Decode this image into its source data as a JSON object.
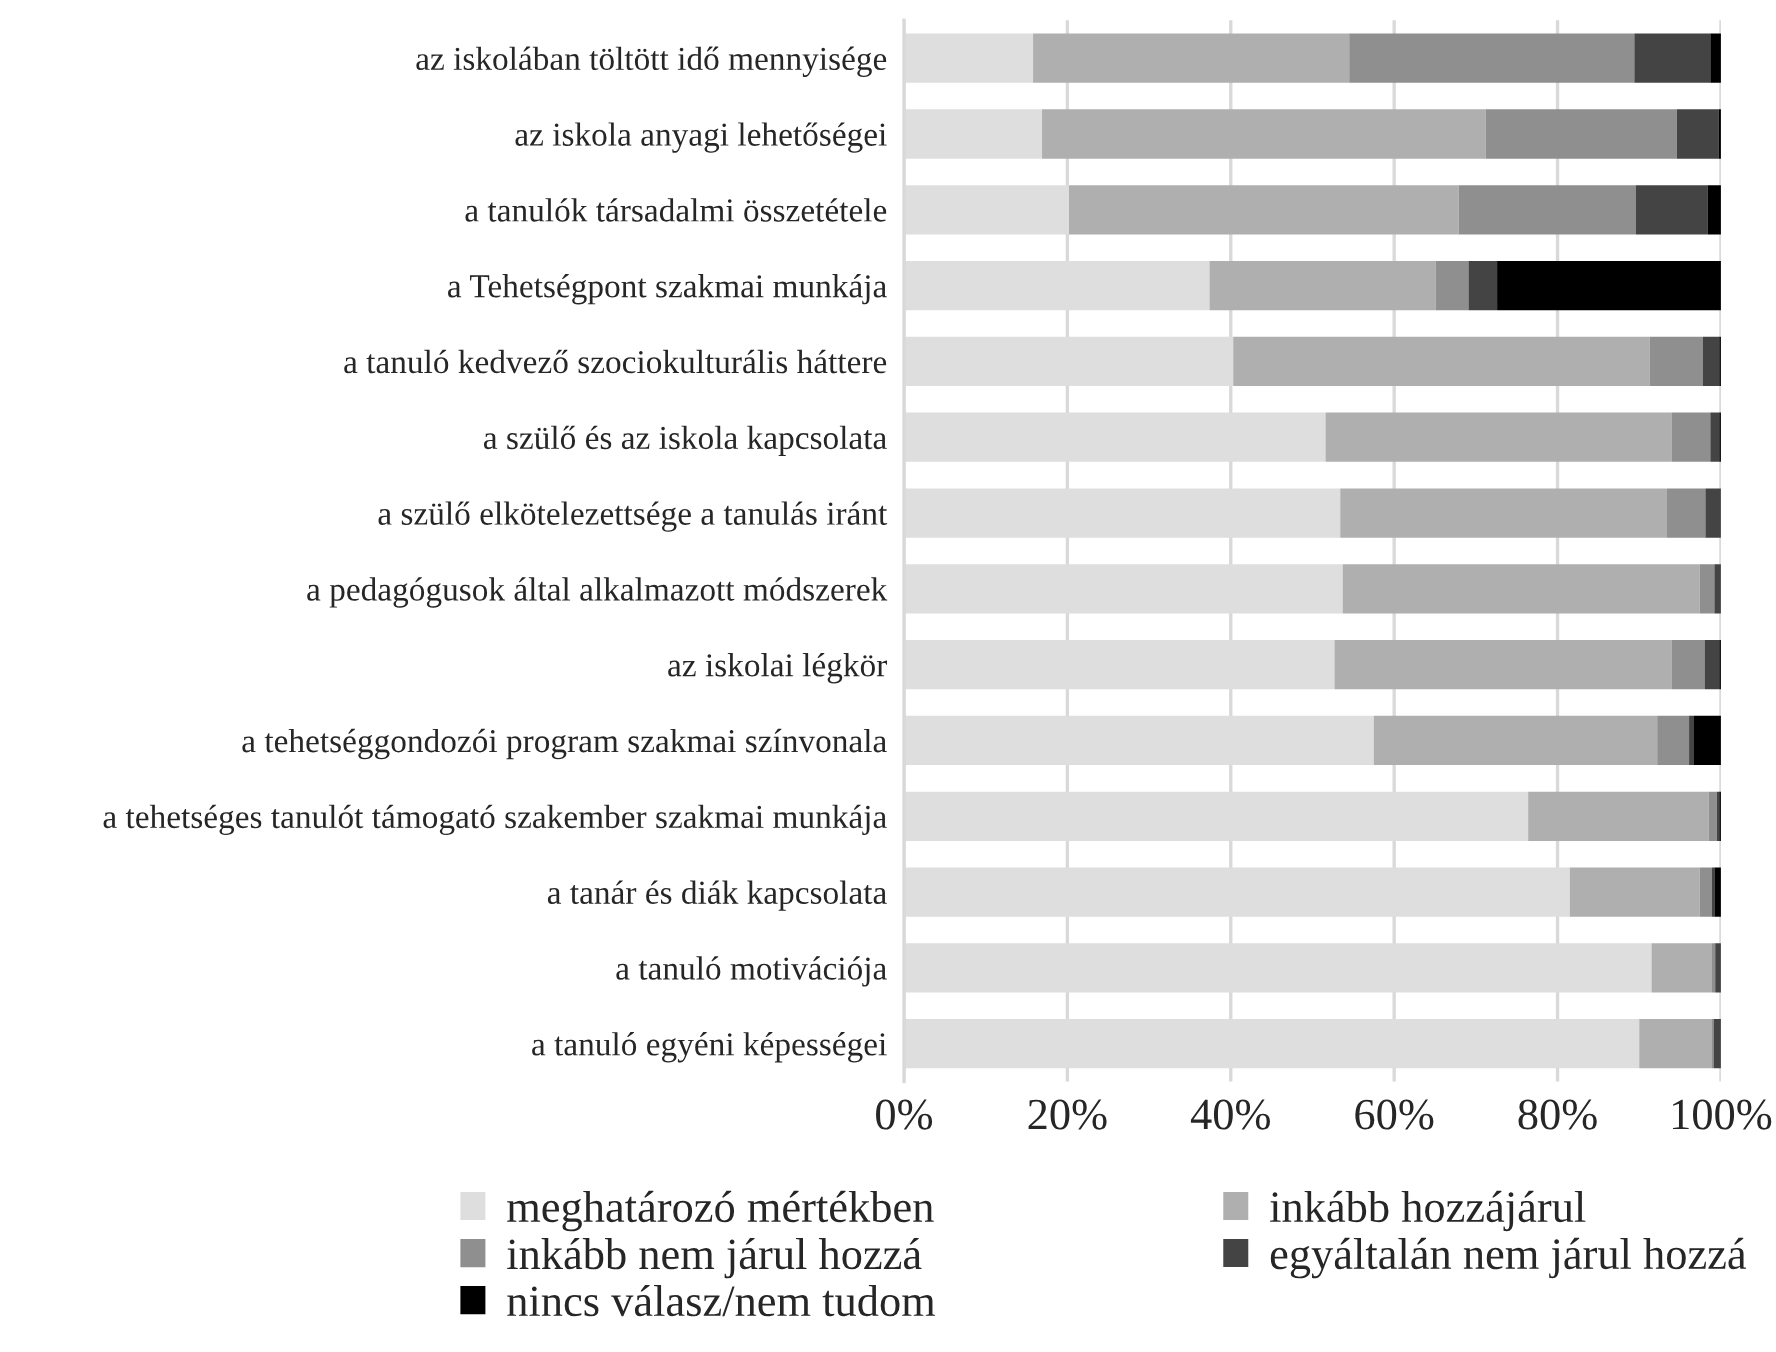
{
  "chart_data": {
    "type": "bar",
    "orientation": "horizontal",
    "stacked": true,
    "categories": [
      "az iskolában töltött idő mennyisége",
      "az iskola anyagi lehetőségei",
      "a tanulók társadalmi összetétele",
      "a Tehetségpont szakmai munkája",
      "a tanuló kedvező szociokulturális háttere",
      "a szülő és az iskola kapcsolata",
      "a szülő elkötelezettsége a tanulás iránt",
      "a pedagógusok által alkalmazott módszerek",
      "az iskolai légkör",
      "a tehetséggondozói program szakmai színvonala",
      "a tehetséges tanulót támogató szakember szakmai munkája",
      "a tanár és diák kapcsolata",
      "a tanuló motivációja",
      "a tanuló egyéni képességei"
    ],
    "series": [
      {
        "name": "meghatározó mértékben",
        "color": "#dedede",
        "values": [
          15.8,
          16.9,
          20.2,
          37.4,
          40.3,
          51.6,
          53.4,
          53.7,
          52.7,
          57.5,
          76.4,
          81.5,
          91.5,
          90.0
        ]
      },
      {
        "name": "inkább hozzájárul",
        "color": "#afafaf",
        "values": [
          38.7,
          54.3,
          47.7,
          27.7,
          51.0,
          42.4,
          40.0,
          43.7,
          41.3,
          34.7,
          22.1,
          15.9,
          7.4,
          8.9
        ]
      },
      {
        "name": "inkább nem járul hozzá",
        "color": "#8f8f8f",
        "values": [
          34.9,
          23.4,
          21.7,
          4.0,
          6.5,
          4.7,
          4.7,
          1.8,
          4.0,
          3.9,
          1.0,
          1.5,
          0.4,
          0.2
        ]
      },
      {
        "name": "egyáltalán nem járul hozzá",
        "color": "#444444",
        "values": [
          9.3,
          5.1,
          8.8,
          3.5,
          2.0,
          1.1,
          1.9,
          0.8,
          1.8,
          0.6,
          0.3,
          0.3,
          0.7,
          0.9
        ]
      },
      {
        "name": "nincs válasz/nem tudom",
        "color": "#000000",
        "values": [
          1.3,
          0.3,
          1.6,
          27.4,
          0.2,
          0.2,
          0.0,
          0.0,
          0.2,
          3.3,
          0.2,
          0.8,
          0.0,
          0.0
        ]
      }
    ],
    "xlim": [
      0,
      100
    ],
    "xticks": [
      {
        "value": 0,
        "label": "0%"
      },
      {
        "value": 20,
        "label": "20%"
      },
      {
        "value": 40,
        "label": "40%"
      },
      {
        "value": 60,
        "label": "60%"
      },
      {
        "value": 80,
        "label": "80%"
      },
      {
        "value": 100,
        "label": "100%"
      }
    ],
    "grid": "x",
    "legend": "bottom"
  }
}
